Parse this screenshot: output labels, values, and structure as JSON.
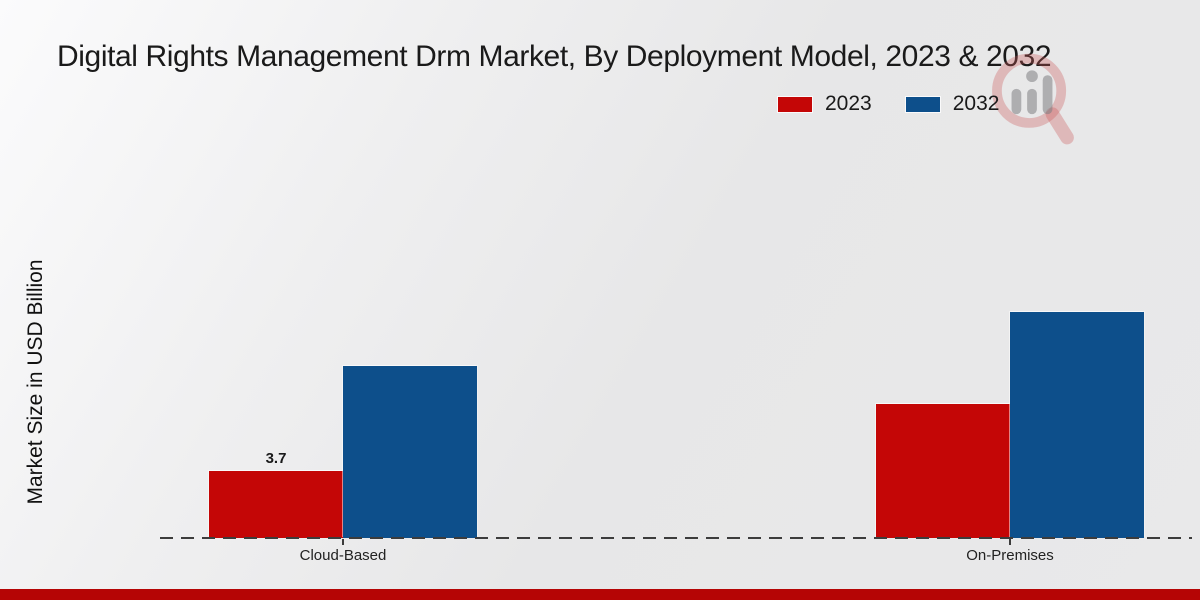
{
  "page": {
    "title": "Digital Rights Management Drm Market, By Deployment Model, 2023 & 2032"
  },
  "colors": {
    "series_2023": "#c40606",
    "series_2032": "#0d4f8b",
    "footer_stripe": "#b50505",
    "baseline": "#3c3c3c",
    "background": "#e9e9ea"
  },
  "legend": {
    "items": [
      {
        "label": "2023",
        "color": "#c40606"
      },
      {
        "label": "2032",
        "color": "#0d4f8b"
      }
    ]
  },
  "watermark": {
    "name": "market-research-magnifier-logo"
  },
  "chart_data": {
    "type": "bar",
    "title": "Digital Rights Management Drm Market, By Deployment Model, 2023 & 2032",
    "categories": [
      "Cloud-Based",
      "On-Premises"
    ],
    "series": [
      {
        "name": "2023",
        "color": "#c40606",
        "values": [
          3.7,
          7.4
        ],
        "labels": [
          "3.7",
          ""
        ]
      },
      {
        "name": "2032",
        "color": "#0d4f8b",
        "values": [
          9.5,
          12.5
        ],
        "labels": [
          "",
          ""
        ]
      }
    ],
    "xlabel": "",
    "ylabel": "Market Size in USD Billion",
    "ylim": [
      0,
      13.5
    ],
    "grid": false,
    "legend_position": "top-right",
    "baseline_style": "dashed",
    "annotations": [
      "Only the Cloud-Based 2023 bar carries a printed value label: 3.7"
    ]
  }
}
